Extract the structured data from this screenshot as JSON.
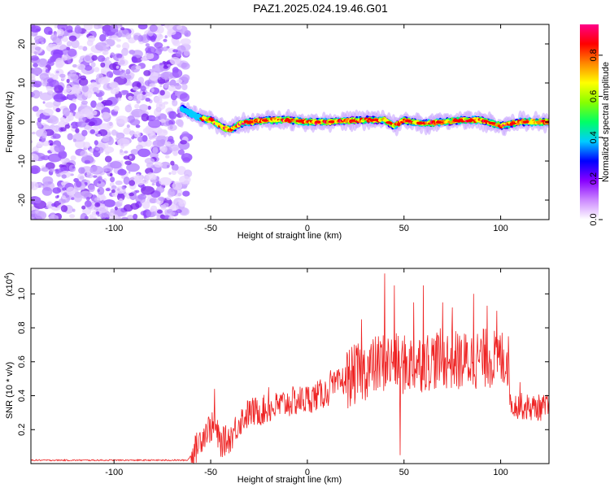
{
  "title": "PAZ1.2025.024.19.46.G01",
  "chart_data": [
    {
      "type": "heatmap",
      "name": "spectrogram",
      "xlabel": "Height of straight line (km)",
      "ylabel": "Frequency (Hz)",
      "xlim": [
        -143,
        125
      ],
      "ylim": [
        -25,
        25
      ],
      "x_ticks": [
        -100,
        -50,
        0,
        50,
        100
      ],
      "y_ticks": [
        -20,
        -10,
        0,
        10,
        20
      ],
      "noise_region_x": [
        -143,
        -65
      ],
      "signal_line_x": [
        -65,
        125
      ],
      "signal_trace": [
        {
          "x": -65,
          "y": 3.5
        },
        {
          "x": -60,
          "y": 2
        },
        {
          "x": -55,
          "y": 1
        },
        {
          "x": -50,
          "y": 0.5
        },
        {
          "x": -45,
          "y": -1
        },
        {
          "x": -40,
          "y": -2
        },
        {
          "x": -35,
          "y": -0.5
        },
        {
          "x": -30,
          "y": 0
        },
        {
          "x": -20,
          "y": 0.5
        },
        {
          "x": -10,
          "y": 0.5
        },
        {
          "x": 0,
          "y": 0
        },
        {
          "x": 10,
          "y": 0
        },
        {
          "x": 20,
          "y": 0.3
        },
        {
          "x": 30,
          "y": 0.5
        },
        {
          "x": 40,
          "y": 0.5
        },
        {
          "x": 45,
          "y": -1
        },
        {
          "x": 50,
          "y": 0.5
        },
        {
          "x": 60,
          "y": -0.5
        },
        {
          "x": 70,
          "y": 0
        },
        {
          "x": 80,
          "y": 0.5
        },
        {
          "x": 90,
          "y": 0.5
        },
        {
          "x": 100,
          "y": -1
        },
        {
          "x": 110,
          "y": 0
        },
        {
          "x": 125,
          "y": 0
        }
      ],
      "colorbar": {
        "label": "Normalized spectral amplitude",
        "range": [
          0,
          0.95
        ],
        "ticks": [
          0.0,
          0.2,
          0.4,
          0.6,
          0.8
        ],
        "tick_labels": [
          "0.0",
          "0.2",
          "0.4",
          "0.6",
          "0.8"
        ],
        "colormap": [
          "#ffffff",
          "#cc88ff",
          "#8800ff",
          "#0000ff",
          "#00ccff",
          "#00ff66",
          "#88ff00",
          "#ffff00",
          "#ff8800",
          "#ff0000",
          "#ff0088"
        ]
      }
    },
    {
      "type": "line",
      "name": "snr",
      "xlabel": "Height of straight line (km)",
      "ylabel": "SNR (10 * v/v)",
      "y_multiplier": "(x10",
      "y_multiplier_exp": "4",
      "y_multiplier_close": ")",
      "xlim": [
        -143,
        125
      ],
      "ylim": [
        0,
        1.15
      ],
      "x_ticks": [
        -100,
        -50,
        0,
        50,
        100
      ],
      "y_ticks": [
        0.2,
        0.4,
        0.6,
        0.8,
        1.0
      ],
      "y_tick_labels": [
        "0.2",
        "0.4",
        "0.6",
        "0.8",
        "1.0"
      ],
      "color": "#ee2222",
      "envelope": [
        {
          "x": -143,
          "y": 0.02
        },
        {
          "x": -62,
          "y": 0.02
        },
        {
          "x": -58,
          "y": 0.08
        },
        {
          "x": -55,
          "y": 0.15
        },
        {
          "x": -52,
          "y": 0.2
        },
        {
          "x": -48,
          "y": 0.22
        },
        {
          "x": -45,
          "y": 0.12
        },
        {
          "x": -40,
          "y": 0.15
        },
        {
          "x": -35,
          "y": 0.25
        },
        {
          "x": -30,
          "y": 0.3
        },
        {
          "x": -20,
          "y": 0.32
        },
        {
          "x": -10,
          "y": 0.36
        },
        {
          "x": 0,
          "y": 0.38
        },
        {
          "x": 10,
          "y": 0.42
        },
        {
          "x": 20,
          "y": 0.5
        },
        {
          "x": 30,
          "y": 0.55
        },
        {
          "x": 40,
          "y": 0.6
        },
        {
          "x": 50,
          "y": 0.58
        },
        {
          "x": 60,
          "y": 0.6
        },
        {
          "x": 70,
          "y": 0.62
        },
        {
          "x": 80,
          "y": 0.6
        },
        {
          "x": 90,
          "y": 0.62
        },
        {
          "x": 100,
          "y": 0.62
        },
        {
          "x": 104,
          "y": 0.62
        },
        {
          "x": 105,
          "y": 0.35
        },
        {
          "x": 115,
          "y": 0.33
        },
        {
          "x": 125,
          "y": 0.33
        }
      ],
      "spikes": [
        {
          "x": -48,
          "y": 0.44
        },
        {
          "x": -20,
          "y": 0.45
        },
        {
          "x": 12,
          "y": 0.55
        },
        {
          "x": 28,
          "y": 0.85
        },
        {
          "x": 40,
          "y": 1.12
        },
        {
          "x": 45,
          "y": 1.05
        },
        {
          "x": 48,
          "y": 0.05
        },
        {
          "x": 55,
          "y": 0.95
        },
        {
          "x": 60,
          "y": 1.05
        },
        {
          "x": 70,
          "y": 0.95
        },
        {
          "x": 75,
          "y": 0.92
        },
        {
          "x": 86,
          "y": 1.0
        },
        {
          "x": 93,
          "y": 0.93
        },
        {
          "x": 98,
          "y": 0.9
        },
        {
          "x": 104,
          "y": 0.75
        },
        {
          "x": 110,
          "y": 0.48
        }
      ]
    }
  ]
}
